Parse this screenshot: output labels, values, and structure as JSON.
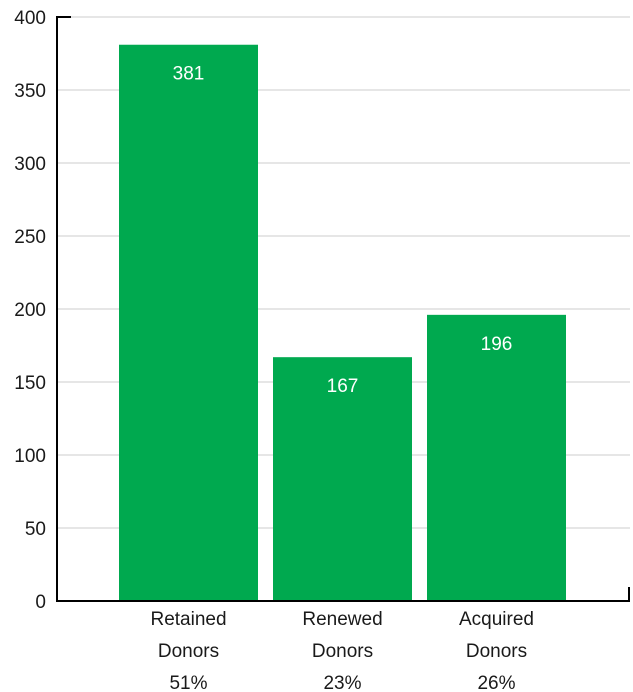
{
  "chart_data": {
    "type": "bar",
    "categories": [
      [
        "Retained",
        "Donors",
        "51%"
      ],
      [
        "Renewed",
        "Donors",
        "23%"
      ],
      [
        "Acquired",
        "Donors",
        "26%"
      ]
    ],
    "values": [
      381,
      167,
      196
    ],
    "data_labels": [
      "381",
      "167",
      "196"
    ],
    "title": "",
    "xlabel": "",
    "ylabel": "",
    "ylim": [
      0,
      400
    ],
    "yticks": [
      0,
      50,
      100,
      150,
      200,
      250,
      300,
      350,
      400
    ],
    "grid": true,
    "legend": "none",
    "bar_color": "#00a94f",
    "label_color": "#ffffff",
    "grid_color": "#cccccc"
  }
}
